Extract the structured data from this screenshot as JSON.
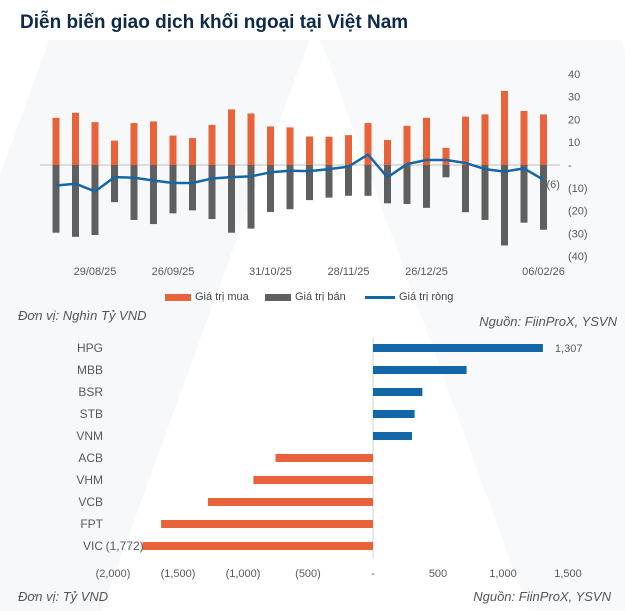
{
  "title": "Diễn biến giao dịch khối ngoại tại Việt Nam",
  "colors": {
    "buy": "#e8623a",
    "sell": "#5f5f5f",
    "net": "#1467a6",
    "title": "#0d2a4a"
  },
  "chart_data": [
    {
      "type": "bar",
      "note_unit": "Đơn vị: Nghìn Tỷ VND",
      "note_source": "Nguồn: FiinProX, YSVN",
      "x_tick_labels": [
        {
          "index": 2,
          "label": "29/08/25"
        },
        {
          "index": 6,
          "label": "26/09/25"
        },
        {
          "index": 11,
          "label": "31/10/25"
        },
        {
          "index": 15,
          "label": "28/11/25"
        },
        {
          "index": 19,
          "label": "26/12/25"
        },
        {
          "index": 25,
          "label": "06/02/26"
        }
      ],
      "y_ticks": [
        "40",
        "30",
        "20",
        "10",
        "-",
        "(10)",
        "(20)",
        "(30)",
        "(40)"
      ],
      "ylim": [
        -40,
        40
      ],
      "legend_position": "bottom",
      "series": [
        {
          "name": "Giá trị mua",
          "type": "bar",
          "values": [
            20.7,
            22.9,
            18.8,
            10.7,
            18.4,
            19.1,
            12.9,
            11.8,
            17.6,
            24.4,
            22.6,
            16.9,
            16.5,
            12.5,
            12.4,
            13.1,
            18.4,
            11,
            17.2,
            20.7,
            7.5,
            21.2,
            22.2,
            32.5,
            23.7,
            22.2
          ]
        },
        {
          "name": "Giá trị bán",
          "type": "bar",
          "values": [
            -29.7,
            -31.5,
            -30.7,
            -16.3,
            -24.1,
            -25.9,
            -21.2,
            -19.9,
            -23.7,
            -29.7,
            -27.9,
            -20.6,
            -19.4,
            -15.4,
            -14.3,
            -13.5,
            -13.5,
            -16.8,
            -17.1,
            -18.8,
            -5.4,
            -20.7,
            -24.1,
            -35.3,
            -25.3,
            -28.4
          ]
        },
        {
          "name": "Giá trị ròng",
          "type": "line",
          "values": [
            -9,
            -8.2,
            -11.6,
            -5.3,
            -5.6,
            -6.8,
            -7.9,
            -7.9,
            -5.9,
            -5.3,
            -5,
            -3.2,
            -2.5,
            -2.7,
            -1.8,
            -0.7,
            4.6,
            -5.4,
            0.4,
            2.2,
            2.2,
            0.9,
            -1.8,
            -2.9,
            -1.5,
            -6.5
          ]
        }
      ],
      "data_labels": [
        {
          "series": "Giá trị ròng",
          "index": 25,
          "label": "(6)"
        }
      ]
    },
    {
      "type": "bar",
      "orientation": "horizontal",
      "note_unit": "Đơn vị: Tỷ VND",
      "note_source": "Nguồn: FiinProX, YSVN",
      "categories": [
        "HPG",
        "MBB",
        "BSR",
        "STB",
        "VNM",
        "ACB",
        "VHM",
        "VCB",
        "FPT",
        "VIC"
      ],
      "values": [
        1307,
        720,
        380,
        320,
        300,
        -750,
        -920,
        -1270,
        -1630,
        -1772
      ],
      "data_labels": [
        {
          "index": 0,
          "label": "1,307"
        },
        {
          "index": 9,
          "label": "(1,772)"
        }
      ],
      "x_ticks": [
        {
          "value": -2000,
          "label": "(2,000)"
        },
        {
          "value": -1500,
          "label": "(1,500)"
        },
        {
          "value": -1000,
          "label": "(1,000)"
        },
        {
          "value": -500,
          "label": "(500)"
        },
        {
          "value": 0,
          "label": "-"
        },
        {
          "value": 500,
          "label": "500"
        },
        {
          "value": 1000,
          "label": "1,000"
        },
        {
          "value": 1500,
          "label": "1,500"
        }
      ],
      "xlim": [
        -2000,
        1500
      ]
    }
  ]
}
